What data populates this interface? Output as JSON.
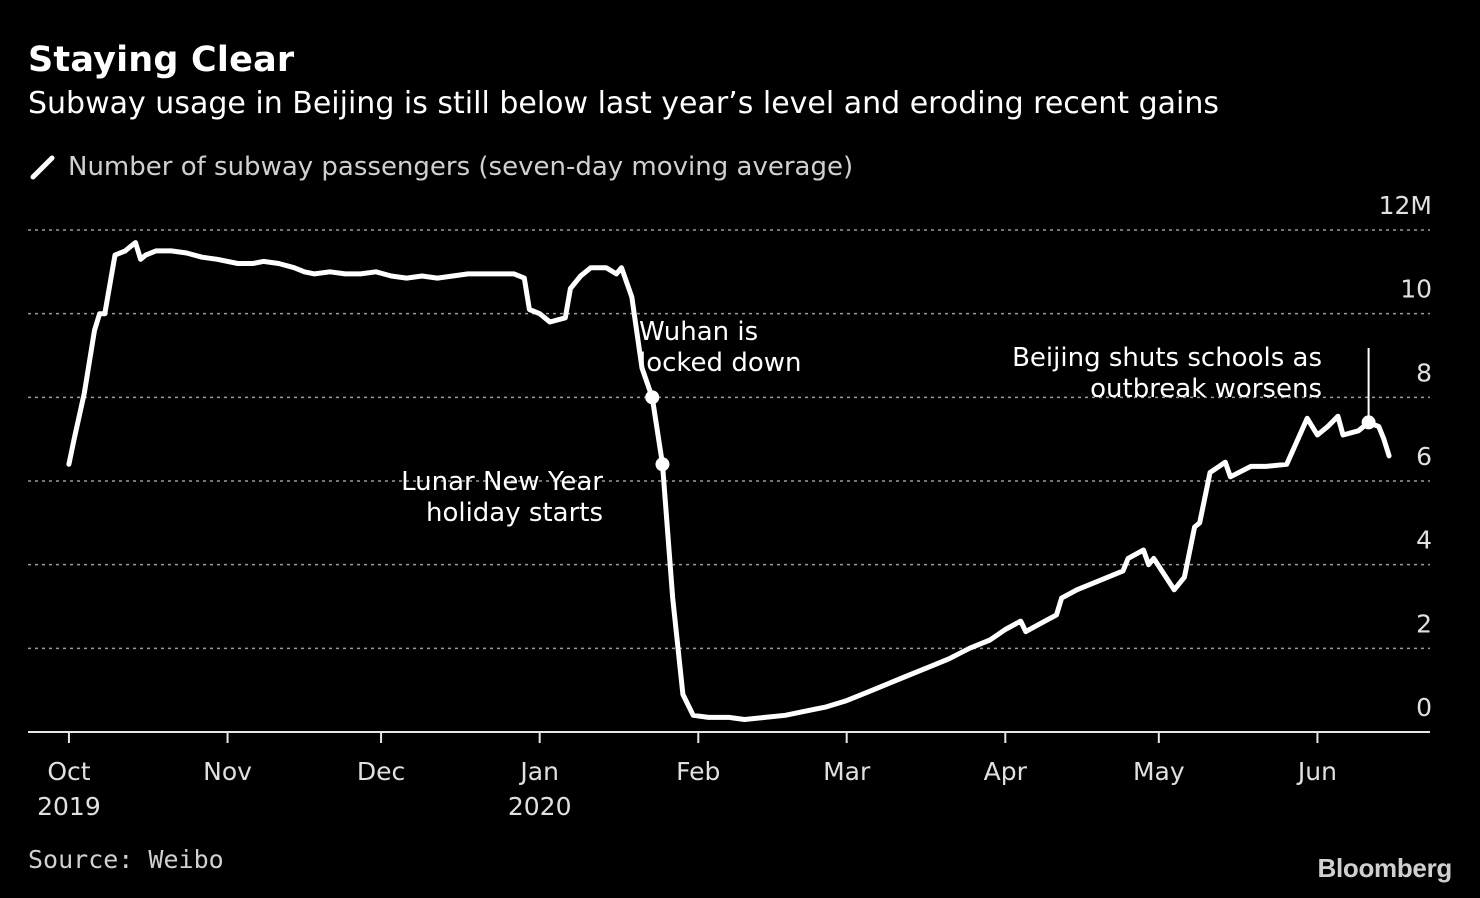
{
  "chart_data": {
    "type": "line",
    "title": "Staying Clear",
    "subtitle": "Subway usage in Beijing is still below last year’s level and eroding recent gains",
    "xlabel": "",
    "ylabel": "",
    "y_unit_label": "12M",
    "ylim": [
      0,
      12
    ],
    "yticks": [
      "0",
      "2",
      "4",
      "6",
      "8",
      "10",
      "12M"
    ],
    "x_axis_labels": [
      {
        "month": "Oct",
        "year": "2019",
        "date": "2019-10-01"
      },
      {
        "month": "Nov",
        "year": "",
        "date": "2019-11-01"
      },
      {
        "month": "Dec",
        "year": "",
        "date": "2019-12-01"
      },
      {
        "month": "Jan",
        "year": "2020",
        "date": "2020-01-01"
      },
      {
        "month": "Feb",
        "year": "",
        "date": "2020-02-01"
      },
      {
        "month": "Mar",
        "year": "",
        "date": "2020-03-01"
      },
      {
        "month": "Apr",
        "year": "",
        "date": "2020-04-01"
      },
      {
        "month": "May",
        "year": "",
        "date": "2020-05-01"
      },
      {
        "month": "Jun",
        "year": "",
        "date": "2020-06-01"
      }
    ],
    "grid": true,
    "legend_position": "top-left",
    "series": [
      {
        "name": "Number of subway passengers (seven-day moving average)",
        "color": "#ffffff",
        "points": [
          [
            "2019-10-01",
            6.4
          ],
          [
            "2019-10-02",
            7.0
          ],
          [
            "2019-10-04",
            8.1
          ],
          [
            "2019-10-06",
            9.6
          ],
          [
            "2019-10-07",
            10.0
          ],
          [
            "2019-10-08",
            10.0
          ],
          [
            "2019-10-10",
            11.4
          ],
          [
            "2019-10-12",
            11.5
          ],
          [
            "2019-10-13",
            11.6
          ],
          [
            "2019-10-14",
            11.7
          ],
          [
            "2019-10-15",
            11.3
          ],
          [
            "2019-10-16",
            11.4
          ],
          [
            "2019-10-18",
            11.5
          ],
          [
            "2019-10-21",
            11.5
          ],
          [
            "2019-10-24",
            11.45
          ],
          [
            "2019-10-27",
            11.35
          ],
          [
            "2019-10-30",
            11.3
          ],
          [
            "2019-11-03",
            11.2
          ],
          [
            "2019-11-06",
            11.2
          ],
          [
            "2019-11-08",
            11.25
          ],
          [
            "2019-11-11",
            11.2
          ],
          [
            "2019-11-14",
            11.1
          ],
          [
            "2019-11-16",
            11.0
          ],
          [
            "2019-11-18",
            10.95
          ],
          [
            "2019-11-21",
            11.0
          ],
          [
            "2019-11-24",
            10.95
          ],
          [
            "2019-11-27",
            10.95
          ],
          [
            "2019-11-30",
            11.0
          ],
          [
            "2019-12-03",
            10.9
          ],
          [
            "2019-12-06",
            10.85
          ],
          [
            "2019-12-09",
            10.9
          ],
          [
            "2019-12-12",
            10.85
          ],
          [
            "2019-12-15",
            10.9
          ],
          [
            "2019-12-18",
            10.95
          ],
          [
            "2019-12-21",
            10.95
          ],
          [
            "2019-12-24",
            10.95
          ],
          [
            "2019-12-27",
            10.95
          ],
          [
            "2019-12-29",
            10.85
          ],
          [
            "2019-12-30",
            10.1
          ],
          [
            "2020-01-01",
            10.0
          ],
          [
            "2020-01-03",
            9.8
          ],
          [
            "2020-01-06",
            9.9
          ],
          [
            "2020-01-07",
            10.6
          ],
          [
            "2020-01-09",
            10.9
          ],
          [
            "2020-01-11",
            11.1
          ],
          [
            "2020-01-14",
            11.1
          ],
          [
            "2020-01-16",
            10.95
          ],
          [
            "2020-01-17",
            11.1
          ],
          [
            "2020-01-19",
            10.4
          ],
          [
            "2020-01-21",
            8.7
          ],
          [
            "2020-01-23",
            8.0
          ],
          [
            "2020-01-25",
            6.4
          ],
          [
            "2020-01-27",
            3.2
          ],
          [
            "2020-01-29",
            0.9
          ],
          [
            "2020-01-31",
            0.4
          ],
          [
            "2020-02-03",
            0.35
          ],
          [
            "2020-02-07",
            0.35
          ],
          [
            "2020-02-10",
            0.3
          ],
          [
            "2020-02-14",
            0.35
          ],
          [
            "2020-02-18",
            0.4
          ],
          [
            "2020-02-22",
            0.5
          ],
          [
            "2020-02-26",
            0.6
          ],
          [
            "2020-03-01",
            0.75
          ],
          [
            "2020-03-05",
            0.95
          ],
          [
            "2020-03-09",
            1.15
          ],
          [
            "2020-03-13",
            1.35
          ],
          [
            "2020-03-17",
            1.55
          ],
          [
            "2020-03-21",
            1.75
          ],
          [
            "2020-03-25",
            2.0
          ],
          [
            "2020-03-29",
            2.2
          ],
          [
            "2020-04-01",
            2.45
          ],
          [
            "2020-04-04",
            2.65
          ],
          [
            "2020-04-05",
            2.4
          ],
          [
            "2020-04-08",
            2.6
          ],
          [
            "2020-04-11",
            2.8
          ],
          [
            "2020-04-12",
            3.2
          ],
          [
            "2020-04-15",
            3.4
          ],
          [
            "2020-04-19",
            3.6
          ],
          [
            "2020-04-24",
            3.85
          ],
          [
            "2020-04-25",
            4.15
          ],
          [
            "2020-04-28",
            4.35
          ],
          [
            "2020-04-29",
            4.0
          ],
          [
            "2020-04-30",
            4.15
          ],
          [
            "2020-05-04",
            3.4
          ],
          [
            "2020-05-06",
            3.7
          ],
          [
            "2020-05-08",
            4.9
          ],
          [
            "2020-05-09",
            5.0
          ],
          [
            "2020-05-11",
            6.2
          ],
          [
            "2020-05-14",
            6.45
          ],
          [
            "2020-05-15",
            6.1
          ],
          [
            "2020-05-19",
            6.35
          ],
          [
            "2020-05-22",
            6.35
          ],
          [
            "2020-05-26",
            6.4
          ],
          [
            "2020-05-30",
            7.5
          ],
          [
            "2020-06-01",
            7.1
          ],
          [
            "2020-06-03",
            7.3
          ],
          [
            "2020-06-05",
            7.55
          ],
          [
            "2020-06-06",
            7.1
          ],
          [
            "2020-06-09",
            7.2
          ],
          [
            "2020-06-11",
            7.4
          ],
          [
            "2020-06-13",
            7.3
          ],
          [
            "2020-06-14",
            7.0
          ],
          [
            "2020-06-15",
            6.6
          ]
        ]
      }
    ],
    "annotations": [
      {
        "date": "2020-01-23",
        "value": 8.0,
        "lines": [
          "Wuhan is",
          "locked down"
        ],
        "side": "right"
      },
      {
        "date": "2020-01-25",
        "value": 6.4,
        "lines": [
          "Lunar New Year",
          "holiday starts"
        ],
        "side": "left"
      },
      {
        "date": "2020-06-11",
        "value": 7.4,
        "lines": [
          "Beijing shuts schools as",
          "outbreak worsens"
        ],
        "side": "left"
      }
    ]
  },
  "footer": {
    "source": "Source: Weibo",
    "brand": "Bloomberg"
  }
}
